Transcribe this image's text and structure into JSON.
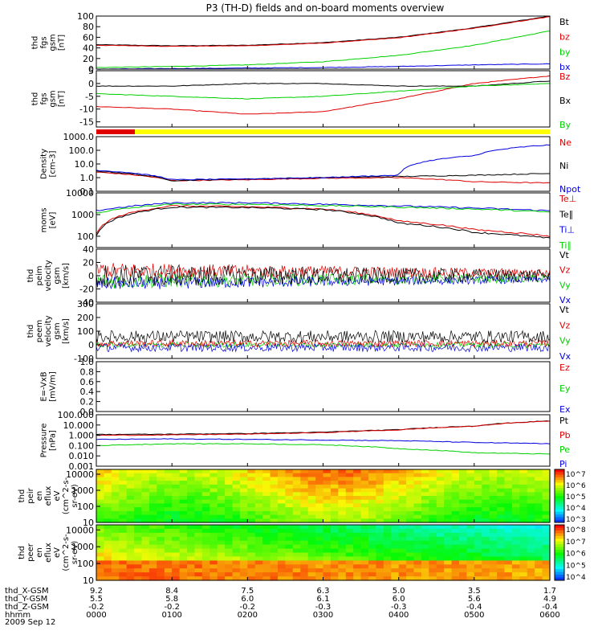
{
  "title": "P3 (TH-D) fields and on-board moments overview",
  "date_label": "2009 Sep 12",
  "colors": {
    "black": "#000000",
    "red": "#e00000",
    "green": "#00d000",
    "blue": "#0000e0",
    "yellow": "#ffff00"
  },
  "footer": {
    "rows": [
      {
        "label": "thd_X-GSM",
        "values": [
          "9.2",
          "8.4",
          "7.5",
          "6.3",
          "5.0",
          "3.5",
          "1.7"
        ]
      },
      {
        "label": "thd_Y-GSM",
        "values": [
          "5.5",
          "5.8",
          "6.0",
          "6.1",
          "6.0",
          "5.6",
          "4.9"
        ]
      },
      {
        "label": "thd_Z-GSM",
        "values": [
          "-0.2",
          "-0.2",
          "-0.2",
          "-0.3",
          "-0.3",
          "-0.4",
          "-0.4"
        ]
      },
      {
        "label": "hhmm",
        "values": [
          "0000",
          "0100",
          "0200",
          "0300",
          "0400",
          "0500",
          "0600"
        ]
      }
    ]
  },
  "chart_data": [
    {
      "type": "line",
      "ylabel": [
        "thd",
        "fgs",
        "gsm",
        "[nT]"
      ],
      "ylim": [
        0,
        100
      ],
      "ticks": [
        "100",
        "80",
        "60",
        "40",
        "20",
        "0"
      ],
      "legend": [
        "Bt",
        "bz",
        "by",
        "bx"
      ],
      "legend_colors": [
        "black",
        "red",
        "green",
        "blue"
      ],
      "x": [
        "0000",
        "0100",
        "0200",
        "0300",
        "0400",
        "0500",
        "0600"
      ],
      "series": [
        {
          "name": "Bt",
          "values": [
            46,
            44,
            45,
            50,
            60,
            78,
            100
          ]
        },
        {
          "name": "bz",
          "values": [
            45,
            43,
            44,
            49,
            59,
            77,
            99
          ]
        },
        {
          "name": "by",
          "values": [
            3,
            5,
            8,
            14,
            26,
            45,
            72
          ]
        },
        {
          "name": "bx",
          "values": [
            0,
            1,
            2,
            3,
            5,
            8,
            10
          ]
        }
      ]
    },
    {
      "type": "line",
      "ylabel": [
        "thd",
        "fgs",
        "gsm",
        "[nT]"
      ],
      "ylim": [
        -17,
        5
      ],
      "ticks": [
        "5",
        "0",
        "-5",
        "-10",
        "-15"
      ],
      "legend": [
        "Bz",
        "Bx",
        "By"
      ],
      "legend_colors": [
        "red",
        "black",
        "green"
      ],
      "x": [
        "0000",
        "0100",
        "0200",
        "0300",
        "0400",
        "0500",
        "0600"
      ],
      "series": [
        {
          "name": "Bz",
          "values": [
            -9,
            -10,
            -12,
            -11,
            -6,
            0,
            3
          ]
        },
        {
          "name": "Bx",
          "values": [
            -1,
            -1,
            0,
            0,
            -1,
            -1,
            1
          ]
        },
        {
          "name": "By",
          "values": [
            -4,
            -5,
            -6,
            -5,
            -3,
            -1,
            0
          ]
        }
      ]
    },
    {
      "type": "line",
      "ylabel": [
        "Density",
        "[cm-3]"
      ],
      "yscale": "log",
      "ylim": [
        0.1,
        1000
      ],
      "ticks": [
        "1000.0",
        "100.0",
        "10.0",
        "1.0",
        "0.1"
      ],
      "legend": [
        "Ne",
        "Ni",
        "Npot"
      ],
      "legend_colors": [
        "red",
        "black",
        "blue"
      ],
      "x": [
        "0000",
        "0100",
        "0200",
        "0300",
        "0400",
        "0500",
        "0600"
      ],
      "series": [
        {
          "name": "Ne",
          "values": [
            2.5,
            0.6,
            0.7,
            0.9,
            1.0,
            0.5,
            0.4
          ]
        },
        {
          "name": "Ni",
          "values": [
            3,
            0.6,
            0.8,
            1.0,
            1.2,
            1.5,
            2.0
          ]
        },
        {
          "name": "Npot",
          "values": [
            3.5,
            0.7,
            0.8,
            1.0,
            1.5,
            40,
            250
          ]
        }
      ]
    },
    {
      "type": "line",
      "ylabel": [
        "moms",
        "[eV]"
      ],
      "yscale": "log",
      "ylim": [
        30,
        10000
      ],
      "ticks": [
        "10000",
        "1000",
        "100"
      ],
      "legend": [
        "Te⊥",
        "Te∥",
        "Ti⊥",
        "Ti∥"
      ],
      "legend_colors": [
        "red",
        "black",
        "blue",
        "green"
      ],
      "x": [
        "0000",
        "0100",
        "0200",
        "0300",
        "0400",
        "0500",
        "0600"
      ],
      "series": [
        {
          "name": "Te⊥",
          "values": [
            120,
            2500,
            2300,
            1800,
            500,
            200,
            100
          ]
        },
        {
          "name": "Te∥",
          "values": [
            100,
            2200,
            2100,
            1700,
            400,
            150,
            80
          ]
        },
        {
          "name": "Ti⊥",
          "values": [
            1500,
            3500,
            3500,
            3000,
            2500,
            2000,
            1500
          ]
        },
        {
          "name": "Ti∥",
          "values": [
            1200,
            3000,
            3000,
            2600,
            2200,
            1800,
            1300
          ]
        }
      ]
    },
    {
      "type": "line",
      "ylabel": [
        "thd",
        "peim",
        "velocity",
        "gsm",
        "[km/s]"
      ],
      "ylim": [
        -40,
        40
      ],
      "ticks": [
        "40",
        "20",
        "0",
        "-20",
        "-40"
      ],
      "legend": [
        "Vt",
        "Vz",
        "Vy",
        "Vx"
      ],
      "legend_colors": [
        "black",
        "red",
        "green",
        "blue"
      ]
    },
    {
      "type": "line",
      "ylabel": [
        "thd",
        "peem",
        "velocity",
        "gsm",
        "[km/s]"
      ],
      "ylim": [
        -100,
        300
      ],
      "ticks": [
        "300",
        "200",
        "100",
        "0",
        "-100"
      ],
      "legend": [
        "Vt",
        "Vz",
        "Vy",
        "Vx"
      ],
      "legend_colors": [
        "black",
        "red",
        "green",
        "blue"
      ]
    },
    {
      "type": "line",
      "ylabel": [
        "E=-VxB",
        "[mV/m]"
      ],
      "ylim": [
        0,
        1
      ],
      "ticks": [
        "1.0",
        "0.8",
        "0.6",
        "0.4",
        "0.2",
        "0.0"
      ],
      "legend": [
        "Ez",
        "Ey",
        "Ex"
      ],
      "legend_colors": [
        "red",
        "green",
        "blue"
      ]
    },
    {
      "type": "line",
      "ylabel": [
        "Pressure",
        "[nPa]"
      ],
      "yscale": "log",
      "ylim": [
        0.001,
        100
      ],
      "ticks": [
        "100.000",
        "10.000",
        "1.000",
        "0.100",
        "0.010",
        "0.001"
      ],
      "legend": [
        "Pt",
        "Pb",
        "Pe",
        "Pi"
      ],
      "legend_colors": [
        "black",
        "red",
        "green",
        "blue"
      ],
      "x": [
        "0000",
        "0100",
        "0200",
        "0300",
        "0400",
        "0500",
        "0600"
      ],
      "series": [
        {
          "name": "Pt",
          "values": [
            1.2,
            1.3,
            1.5,
            2.0,
            3.5,
            8,
            25
          ]
        },
        {
          "name": "Pb",
          "values": [
            1.0,
            1.1,
            1.3,
            1.8,
            3.3,
            7.5,
            24
          ]
        },
        {
          "name": "Pe",
          "values": [
            0.1,
            0.15,
            0.15,
            0.12,
            0.05,
            0.02,
            0.015
          ]
        },
        {
          "name": "Pi",
          "values": [
            0.4,
            0.45,
            0.4,
            0.35,
            0.3,
            0.2,
            0.15
          ]
        }
      ]
    },
    {
      "type": "heatmap",
      "ylabel": [
        "thd",
        "peir",
        "en",
        "eflux",
        "eV",
        "(cm^2-s-",
        "sr-eV)"
      ],
      "yscale": "log",
      "ylim": [
        10,
        20000
      ],
      "ticks": [
        "10000",
        "1000",
        "100",
        "10"
      ],
      "colorbar_ticks": [
        "10^7",
        "10^6",
        "10^5",
        "10^4",
        "10^3"
      ]
    },
    {
      "type": "heatmap",
      "ylabel": [
        "thd",
        "peer",
        "en",
        "eflux",
        "eV",
        "(cm^2-s-",
        "sr-eV)"
      ],
      "yscale": "log",
      "ylim": [
        10,
        20000
      ],
      "ticks": [
        "10000",
        "1000",
        "100",
        "10"
      ],
      "colorbar_ticks": [
        "10^8",
        "10^7",
        "10^6",
        "10^5",
        "10^4"
      ]
    }
  ]
}
